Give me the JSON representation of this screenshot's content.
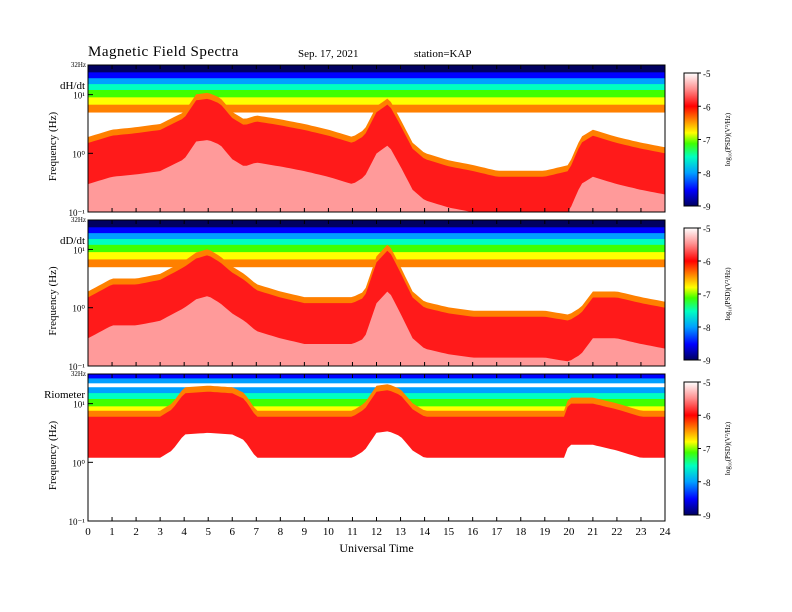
{
  "header": {
    "title": "Magnetic  Field  Spectra",
    "date": "Sep. 17, 2021",
    "station": "station=KAP"
  },
  "colors": {
    "colormap": [
      "#000060",
      "#0000ff",
      "#00a0ff",
      "#00ffc0",
      "#40ff00",
      "#ffff00",
      "#ff8000",
      "#ff0000",
      "#ff9090",
      "#ffffff"
    ]
  },
  "chart_data": [
    {
      "type": "heatmap",
      "panel_label": "dH/dt",
      "ylabel": "Frequency  (Hz)",
      "xlabel": "Universal Time",
      "x_ticks": [
        "0",
        "1",
        "2",
        "3",
        "4",
        "5",
        "6",
        "7",
        "8",
        "9",
        "10",
        "11",
        "12",
        "13",
        "14",
        "15",
        "16",
        "17",
        "18",
        "19",
        "20",
        "21",
        "22",
        "23",
        "24"
      ],
      "xlim": [
        0,
        24
      ],
      "y_scale": "log",
      "ylim": [
        0.1,
        32
      ],
      "y_top_label": "32Hz",
      "y_tick_labels": [
        "10¹",
        "10⁰",
        "10⁻¹"
      ],
      "y_tick_values": [
        10,
        1,
        0.1
      ],
      "colorbar": {
        "label": "log₁₀(PSD)(V²/Hz)",
        "ticks": [
          "-5",
          "-6",
          "-7",
          "-8",
          "-9"
        ],
        "range": [
          -9,
          -5
        ]
      },
      "profile_x": [
        0,
        1,
        2,
        3,
        4,
        4.5,
        5,
        5.5,
        6,
        6.5,
        7,
        8,
        9,
        10,
        11,
        11.5,
        12,
        12.5,
        13,
        13.5,
        14,
        15,
        16,
        17,
        18,
        19,
        20,
        20.5,
        21,
        22,
        23,
        24
      ],
      "red_edge_hz": [
        1.5,
        2.0,
        2.2,
        2.5,
        4,
        8,
        8.5,
        7,
        4,
        3,
        3.5,
        3,
        2.5,
        2,
        1.5,
        2,
        5,
        7,
        3,
        1.2,
        0.8,
        0.6,
        0.5,
        0.4,
        0.4,
        0.4,
        0.5,
        1.5,
        2,
        1.5,
        1.2,
        1
      ]
    },
    {
      "type": "heatmap",
      "panel_label": "dD/dt",
      "ylabel": "Frequency  (Hz)",
      "xlabel": "Universal Time",
      "x_ticks": [
        "0",
        "1",
        "2",
        "3",
        "4",
        "5",
        "6",
        "7",
        "8",
        "9",
        "10",
        "11",
        "12",
        "13",
        "14",
        "15",
        "16",
        "17",
        "18",
        "19",
        "20",
        "21",
        "22",
        "23",
        "24"
      ],
      "xlim": [
        0,
        24
      ],
      "y_scale": "log",
      "ylim": [
        0.1,
        32
      ],
      "y_top_label": "32Hz",
      "y_tick_labels": [
        "10¹",
        "10⁰",
        "10⁻¹"
      ],
      "y_tick_values": [
        10,
        1,
        0.1
      ],
      "colorbar": {
        "label": "log₁₀(PSD)(V²/Hz)",
        "ticks": [
          "-5",
          "-6",
          "-7",
          "-8",
          "-9"
        ],
        "range": [
          -9,
          -5
        ]
      },
      "profile_x": [
        0,
        1,
        2,
        3,
        4,
        4.5,
        5,
        5.5,
        6,
        6.5,
        7,
        8,
        9,
        10,
        11,
        11.5,
        12,
        12.5,
        13,
        13.5,
        14,
        15,
        16,
        17,
        18,
        19,
        20,
        20.5,
        21,
        22,
        23,
        24
      ],
      "red_edge_hz": [
        1.5,
        2.5,
        2.5,
        3,
        5,
        7,
        8,
        6,
        4,
        3,
        2,
        1.5,
        1.2,
        1.2,
        1.2,
        1.5,
        6,
        10,
        4,
        1.5,
        1.0,
        0.8,
        0.7,
        0.7,
        0.7,
        0.7,
        0.6,
        0.8,
        1.5,
        1.5,
        1.2,
        1
      ]
    },
    {
      "type": "heatmap",
      "panel_label": "Riometer",
      "ylabel": "Frequency  (Hz)",
      "xlabel": "Universal Time",
      "x_ticks": [
        "0",
        "1",
        "2",
        "3",
        "4",
        "5",
        "6",
        "7",
        "8",
        "9",
        "10",
        "11",
        "12",
        "13",
        "14",
        "15",
        "16",
        "17",
        "18",
        "19",
        "20",
        "21",
        "22",
        "23",
        "24"
      ],
      "xlim": [
        0,
        24
      ],
      "y_scale": "log",
      "ylim": [
        0.1,
        32
      ],
      "y_top_label": "32Hz",
      "y_tick_labels": [
        "10¹",
        "10⁰",
        "10⁻¹"
      ],
      "y_tick_values": [
        10,
        1,
        0.1
      ],
      "colorbar": {
        "label": "log₁₀(PSD)(V²/Hz)",
        "ticks": [
          "-5",
          "-6",
          "-7",
          "-8",
          "-9"
        ],
        "range": [
          -9,
          -5
        ]
      },
      "profile_x": [
        0,
        1,
        2,
        3,
        3.5,
        4,
        5,
        6,
        6.5,
        7,
        8,
        9,
        10,
        11,
        11.5,
        12,
        12.5,
        13,
        13.5,
        14,
        15,
        16,
        17,
        18,
        19,
        19.8,
        20,
        21,
        22,
        23,
        24
      ],
      "red_edge_hz": [
        6,
        6,
        6,
        6,
        8,
        15,
        16,
        15,
        12,
        6,
        6,
        6,
        6,
        6,
        8,
        16,
        17,
        14,
        8,
        6,
        6,
        6,
        6,
        6,
        6,
        6,
        10,
        10,
        8,
        6,
        6
      ]
    }
  ]
}
